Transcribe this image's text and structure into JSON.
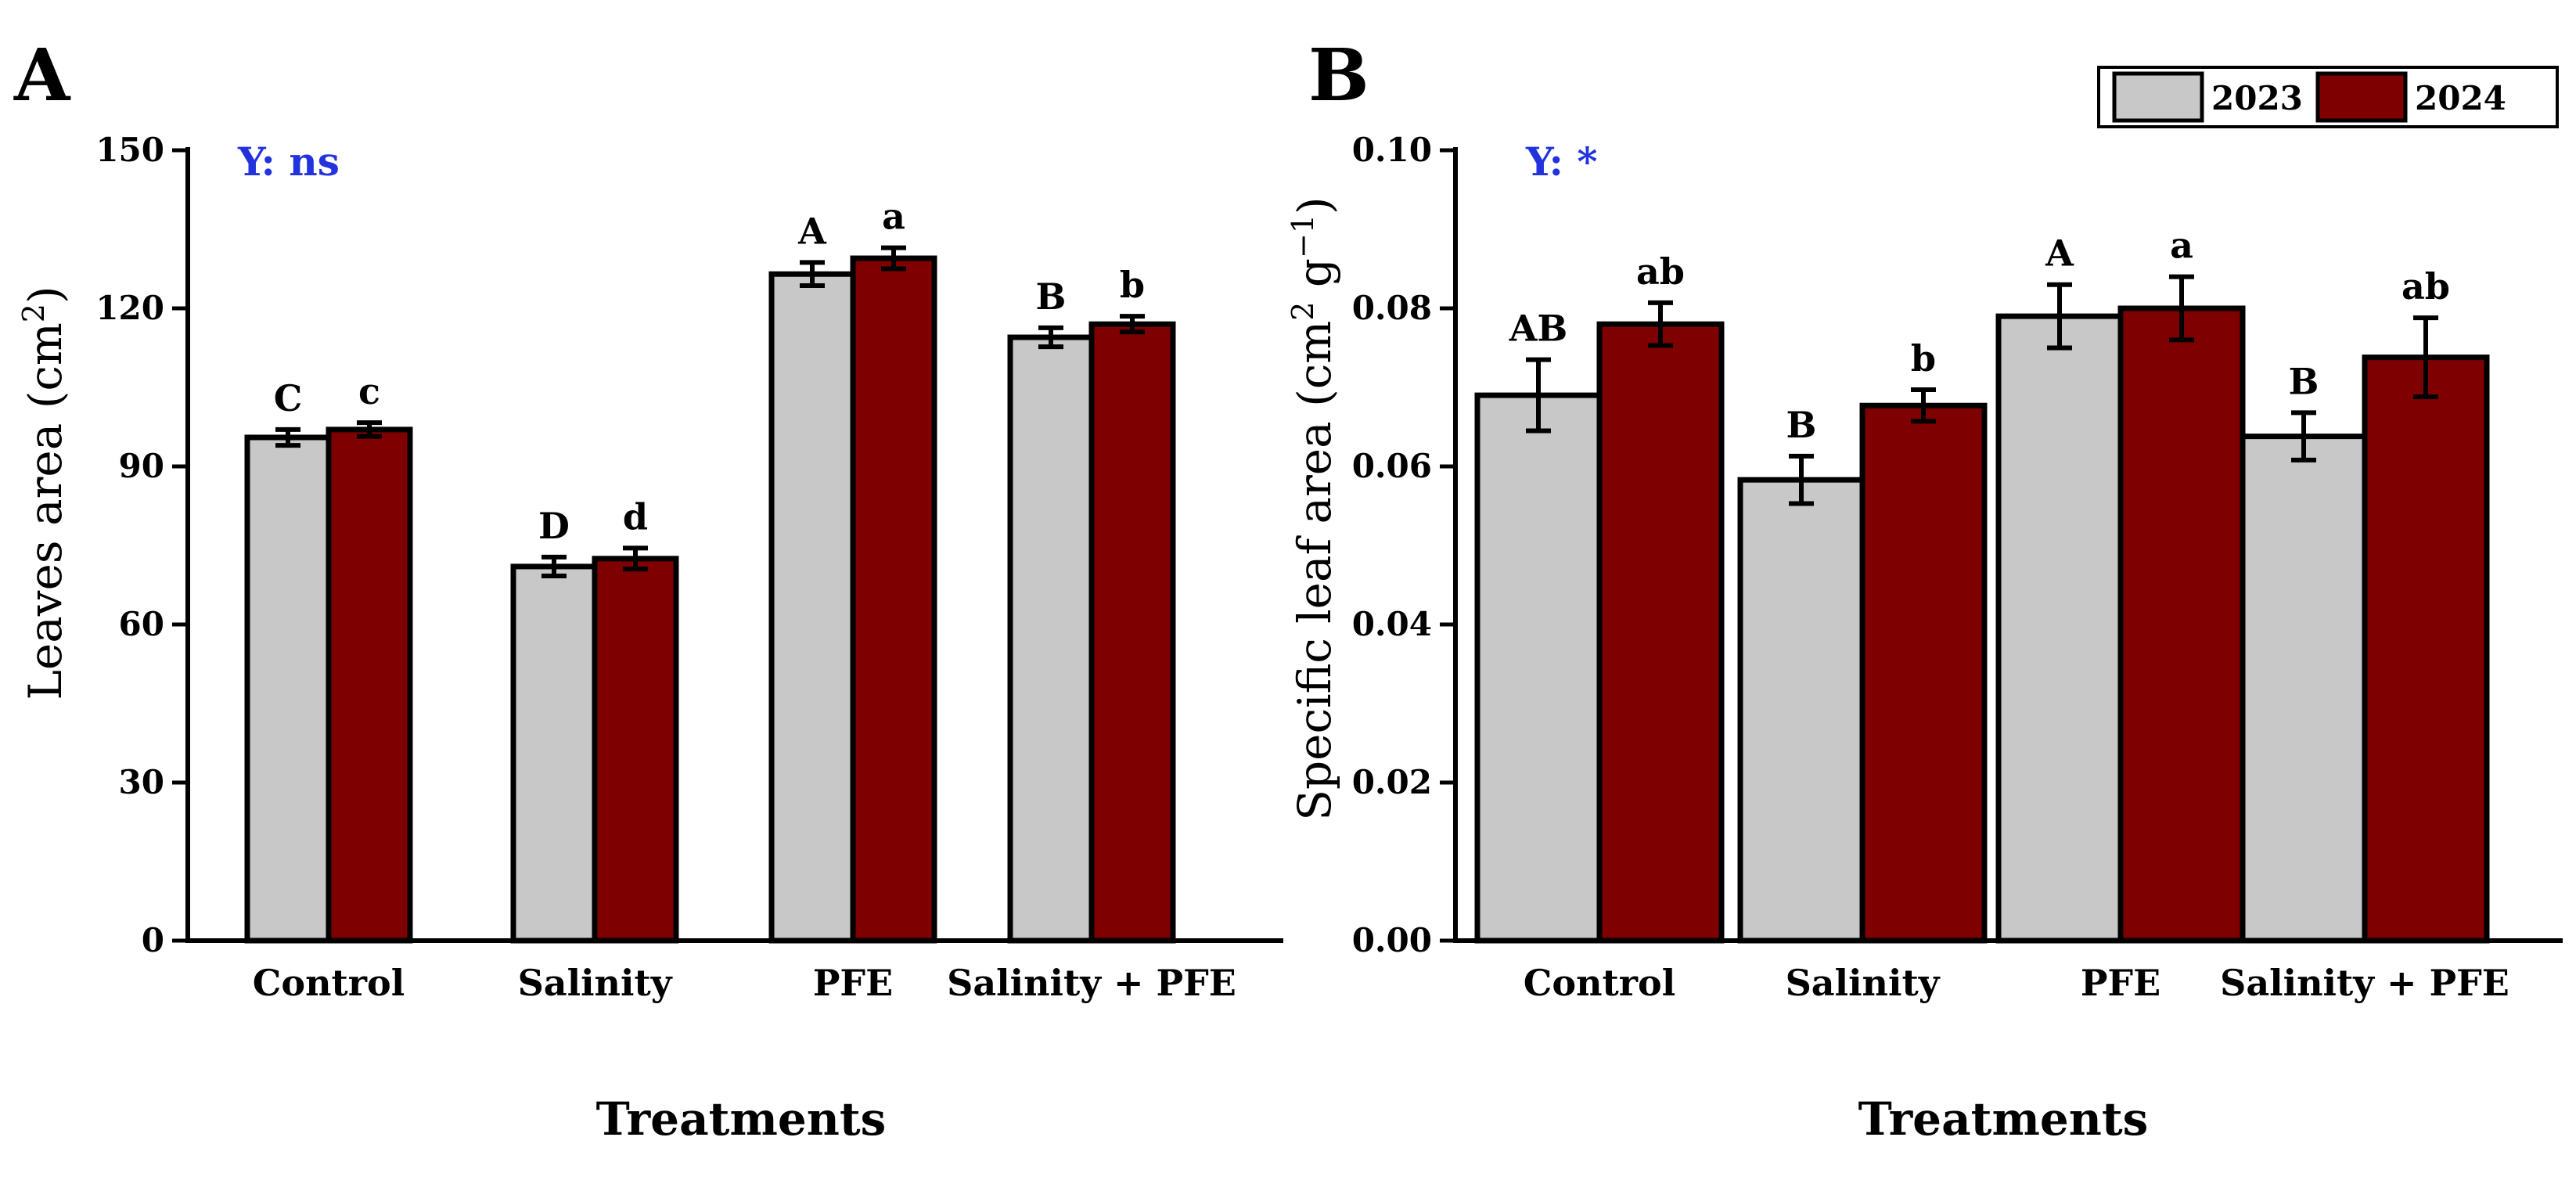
{
  "colors": {
    "series_2023": "#c8c8c8",
    "series_2024": "#7f0000",
    "axis": "#000000",
    "annotation": "#2233dd"
  },
  "legend": {
    "entries": [
      "2023",
      "2024"
    ]
  },
  "chart_data": [
    {
      "panel_label": "A",
      "type": "bar",
      "categories": [
        "Control",
        "Salinity",
        "PFE",
        "Salinity + PFE"
      ],
      "series": [
        {
          "name": "2023",
          "values": [
            95.5,
            71,
            126.5,
            114.5
          ],
          "errors": [
            1.5,
            1.8,
            2.2,
            1.8
          ],
          "letters": [
            "C",
            "D",
            "A",
            "B"
          ]
        },
        {
          "name": "2024",
          "values": [
            97,
            72.5,
            129.5,
            117
          ],
          "errors": [
            1.3,
            2.0,
            2.0,
            1.5
          ],
          "letters": [
            "c",
            "d",
            "a",
            "b"
          ]
        }
      ],
      "xlabel": "Treatments",
      "ylabel": "Leaves area (cm",
      "ylabel_sup": "2",
      "ylabel_end": ")",
      "ylim": [
        0,
        150
      ],
      "yticks": [
        "0",
        "30",
        "60",
        "90",
        "120",
        "150"
      ],
      "annotation": "Y: ns"
    },
    {
      "panel_label": "B",
      "type": "bar",
      "categories": [
        "Control",
        "Salinity",
        "PFE",
        "Salinity + PFE"
      ],
      "series": [
        {
          "name": "2023",
          "values": [
            0.069,
            0.0583,
            0.079,
            0.0638
          ],
          "errors": [
            0.0045,
            0.003,
            0.004,
            0.003
          ],
          "letters": [
            "AB",
            "B",
            "A",
            "B"
          ]
        },
        {
          "name": "2024",
          "values": [
            0.078,
            0.0677,
            0.08,
            0.0738
          ],
          "errors": [
            0.0027,
            0.002,
            0.004,
            0.005
          ],
          "letters": [
            "ab",
            "b",
            "a",
            "ab"
          ]
        }
      ],
      "xlabel": "Treatments",
      "ylabel": "Specific leaf area (cm",
      "ylabel_sup": "2",
      "ylabel_mid": " g",
      "ylabel_sup2": "−1",
      "ylabel_end": ")",
      "ylim": [
        0,
        0.1
      ],
      "yticks": [
        "0.00",
        "0.02",
        "0.04",
        "0.06",
        "0.08",
        "0.10"
      ],
      "annotation": "Y: *"
    }
  ]
}
